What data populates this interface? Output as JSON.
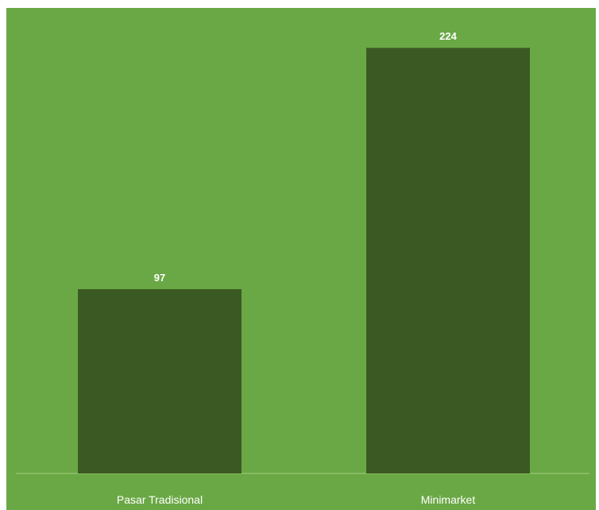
{
  "colors": {
    "panel": "#6aa845",
    "bar": "#3b5a23",
    "text": "#ffffff",
    "axis": "#8fbf6a"
  },
  "chart_data": {
    "type": "bar",
    "categories": [
      "Pasar Tradisional",
      "Minimarket"
    ],
    "values": [
      97,
      224
    ],
    "ylim": [
      0,
      245
    ],
    "grid": false,
    "legend": "none"
  }
}
